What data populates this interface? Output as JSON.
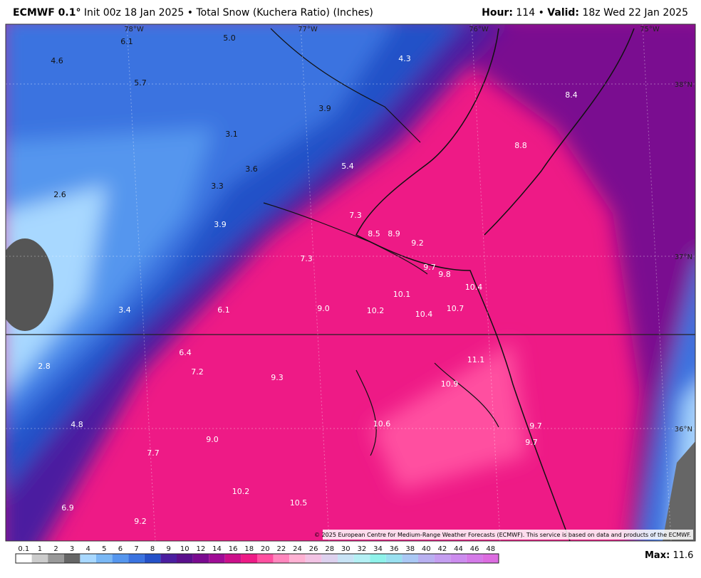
{
  "header": {
    "model": "ECMWF 0.1°",
    "init": "Init 00z 18 Jan 2025",
    "product": "Total Snow (Kuchera Ratio) (Inches)",
    "hour_label": "Hour:",
    "hour": "114",
    "valid_label": "Valid:",
    "valid": "18z Wed 22 Jan 2025"
  },
  "map": {
    "longitudes": [
      "78°W",
      "77°W",
      "76°W",
      "75°W"
    ],
    "latitudes": [
      "38°N",
      "37°N",
      "36°N"
    ],
    "labels": [
      "6.1",
      "5.0",
      "4.3",
      "4.6",
      "5.7",
      "3.9",
      "8.4",
      "3.1",
      "8.8",
      "3.6",
      "5.4",
      "3.3",
      "2.6",
      "7.3",
      "3.9",
      "8.5",
      "8.9",
      "9.2",
      "7.3",
      "9.7",
      "9.8",
      "10.4",
      "10.1",
      "3.4",
      "6.1",
      "9.0",
      "10.2",
      "10.4",
      "10.7",
      "6.4",
      "11.1",
      "2.8",
      "7.2",
      "9.3",
      "10.9",
      "4.8",
      "10.6",
      "9.7",
      "9.0",
      "9.7",
      "7.7",
      "10.2",
      "10.5",
      "6.9",
      "9.2"
    ],
    "copyright": "© 2025 European Centre for Medium-Range Weather Forecasts (ECMWF). This service is based on data and products of the ECMWF."
  },
  "colorbar": {
    "ticks": [
      0.1,
      1,
      2,
      3,
      4,
      5,
      6,
      7,
      8,
      9,
      10,
      12,
      14,
      16,
      18,
      20,
      22,
      24,
      26,
      28,
      30,
      32,
      34,
      36,
      38,
      40,
      42,
      44,
      46,
      48
    ],
    "colors": [
      "#ffffff",
      "#cccccc",
      "#999999",
      "#666666",
      "#a8d8ff",
      "#7ab8f5",
      "#5596ee",
      "#3a73e0",
      "#2451c8",
      "#4b1ea0",
      "#5a0f8c",
      "#7a0a90",
      "#a00c96",
      "#cc0f8a",
      "#ee1a86",
      "#ff4fa0",
      "#ff86bd",
      "#ffb1d3",
      "#f2c3e4",
      "#ddd1ee",
      "#c8e3f5",
      "#b4f0f4",
      "#8ff2ea",
      "#99e0f0",
      "#aac8f4",
      "#b8b0f0",
      "#c49ef0",
      "#cc8cee",
      "#d47ae8",
      "#dc6ce0"
    ],
    "max_label": "Max:",
    "max": "11.6"
  }
}
